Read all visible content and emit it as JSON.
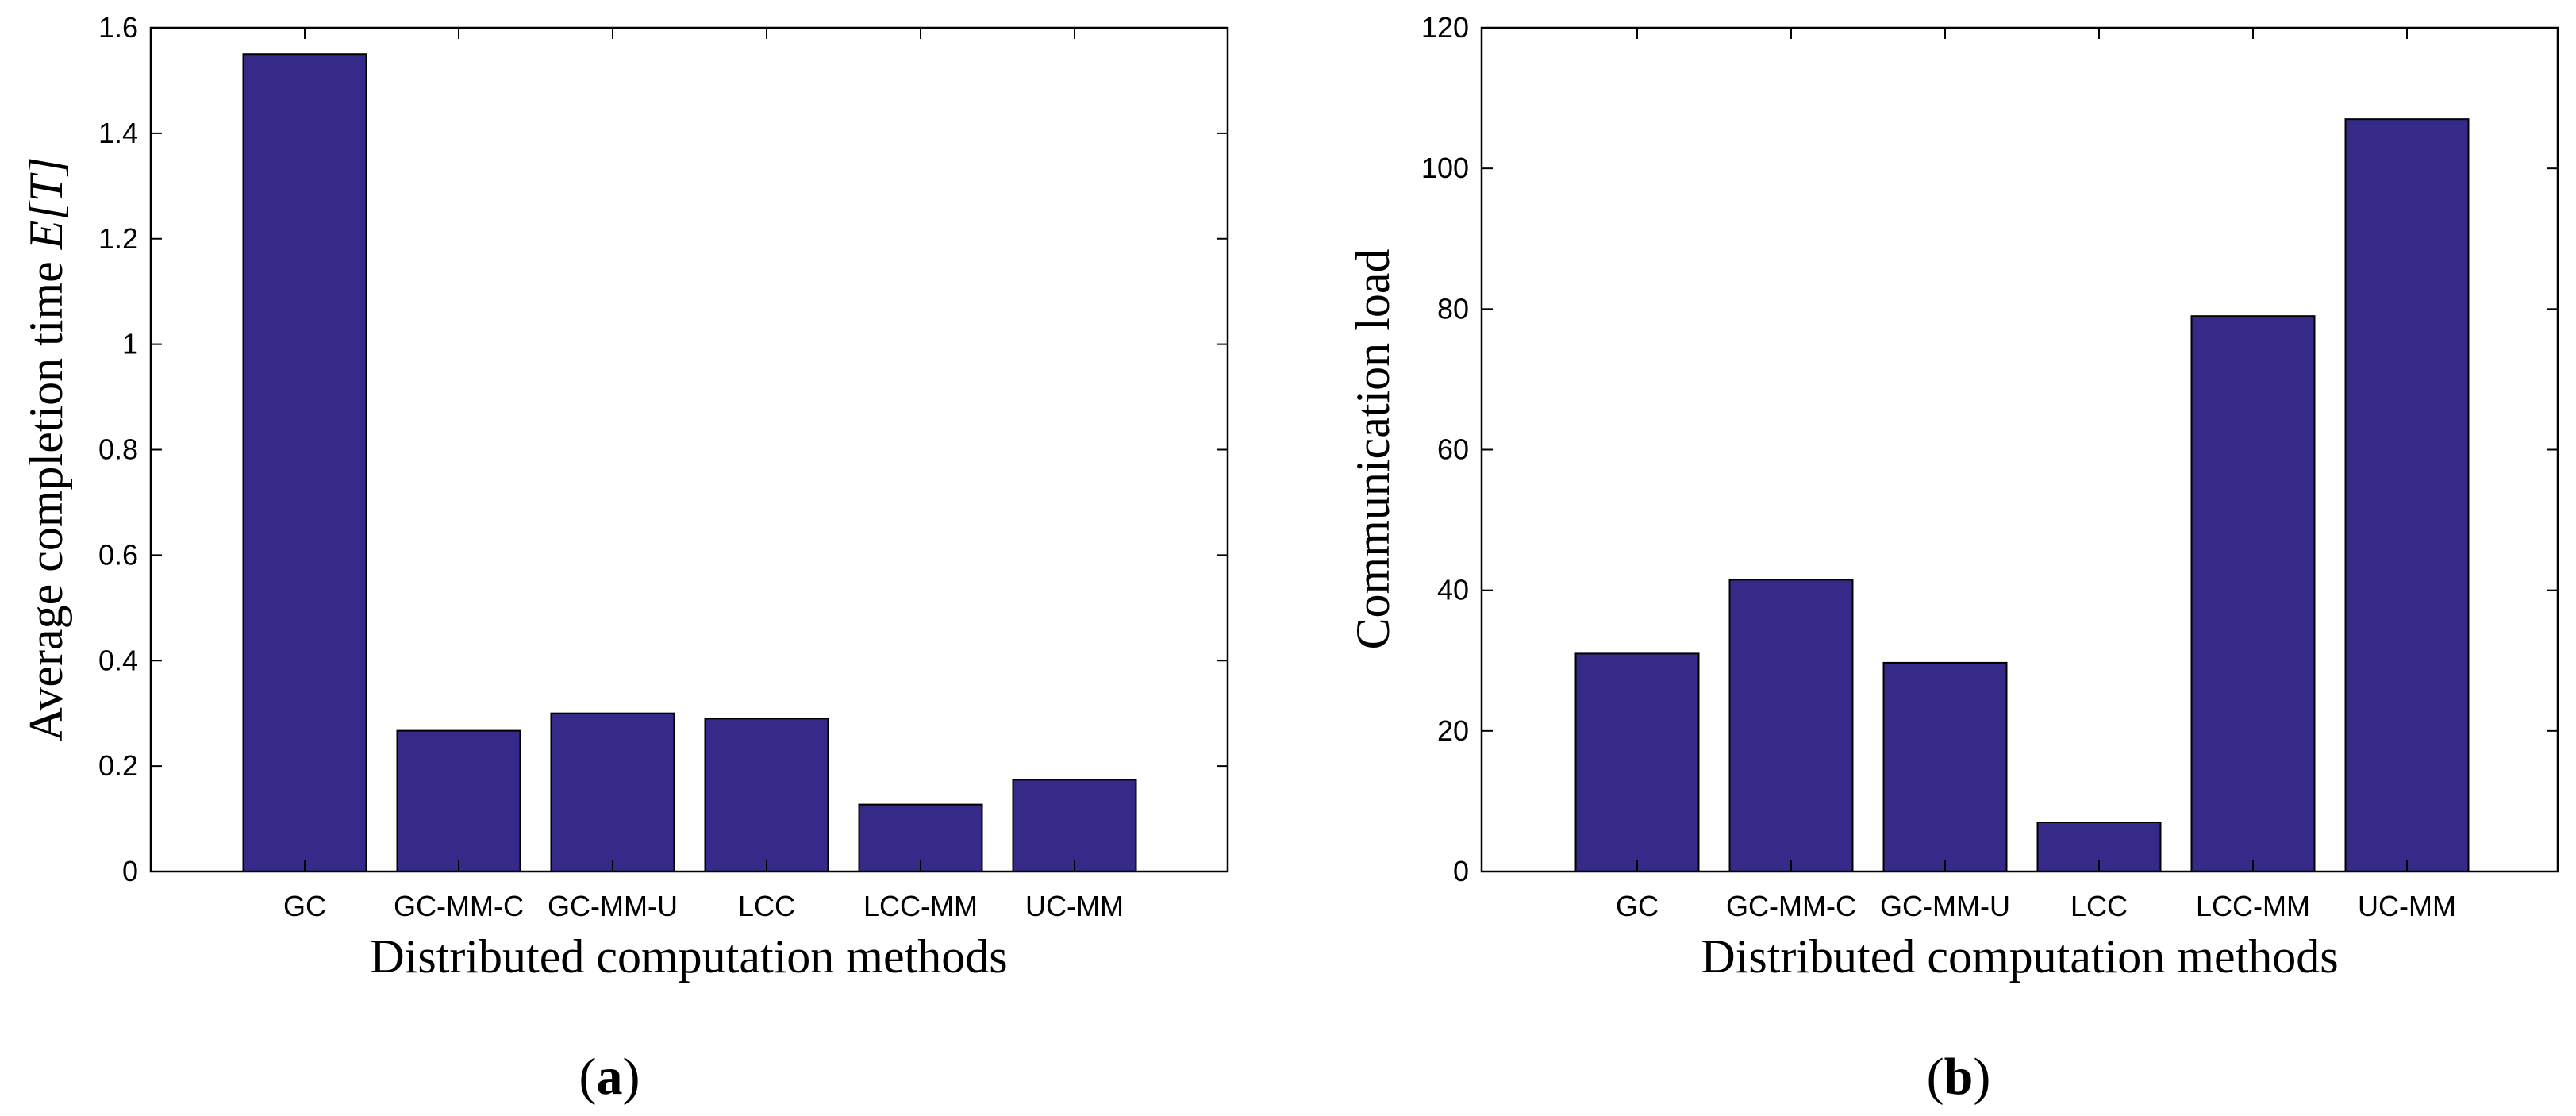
{
  "chart_data": [
    {
      "type": "bar",
      "panel_label": "a",
      "title": "",
      "xlabel": "Distributed computation methods",
      "ylabel_prefix": "Average completion time ",
      "ylabel_math": "E[T]",
      "categories": [
        "GC",
        "GC-MM-C",
        "GC-MM-U",
        "LCC",
        "LCC-MM",
        "UC-MM"
      ],
      "values": [
        1.55,
        0.267,
        0.3,
        0.29,
        0.127,
        0.174
      ],
      "ylim": [
        0,
        1.6
      ],
      "yticks": [
        0,
        0.2,
        0.4,
        0.6,
        0.8,
        1,
        1.2,
        1.4,
        1.6
      ],
      "ytick_labels": [
        "0",
        "0.2",
        "0.4",
        "0.6",
        "0.8",
        "1",
        "1.2",
        "1.4",
        "1.6"
      ],
      "bar_color": "#352a87",
      "grid": false
    },
    {
      "type": "bar",
      "panel_label": "b",
      "title": "",
      "xlabel": "Distributed computation methods",
      "ylabel": "Communication load",
      "categories": [
        "GC",
        "GC-MM-C",
        "GC-MM-U",
        "LCC",
        "LCC-MM",
        "UC-MM"
      ],
      "values": [
        31,
        41.5,
        29.7,
        7,
        79,
        107
      ],
      "ylim": [
        0,
        120
      ],
      "yticks": [
        0,
        20,
        40,
        60,
        80,
        100,
        120
      ],
      "ytick_labels": [
        "0",
        "20",
        "40",
        "60",
        "80",
        "100",
        "120"
      ],
      "bar_color": "#352a87",
      "grid": false
    }
  ]
}
